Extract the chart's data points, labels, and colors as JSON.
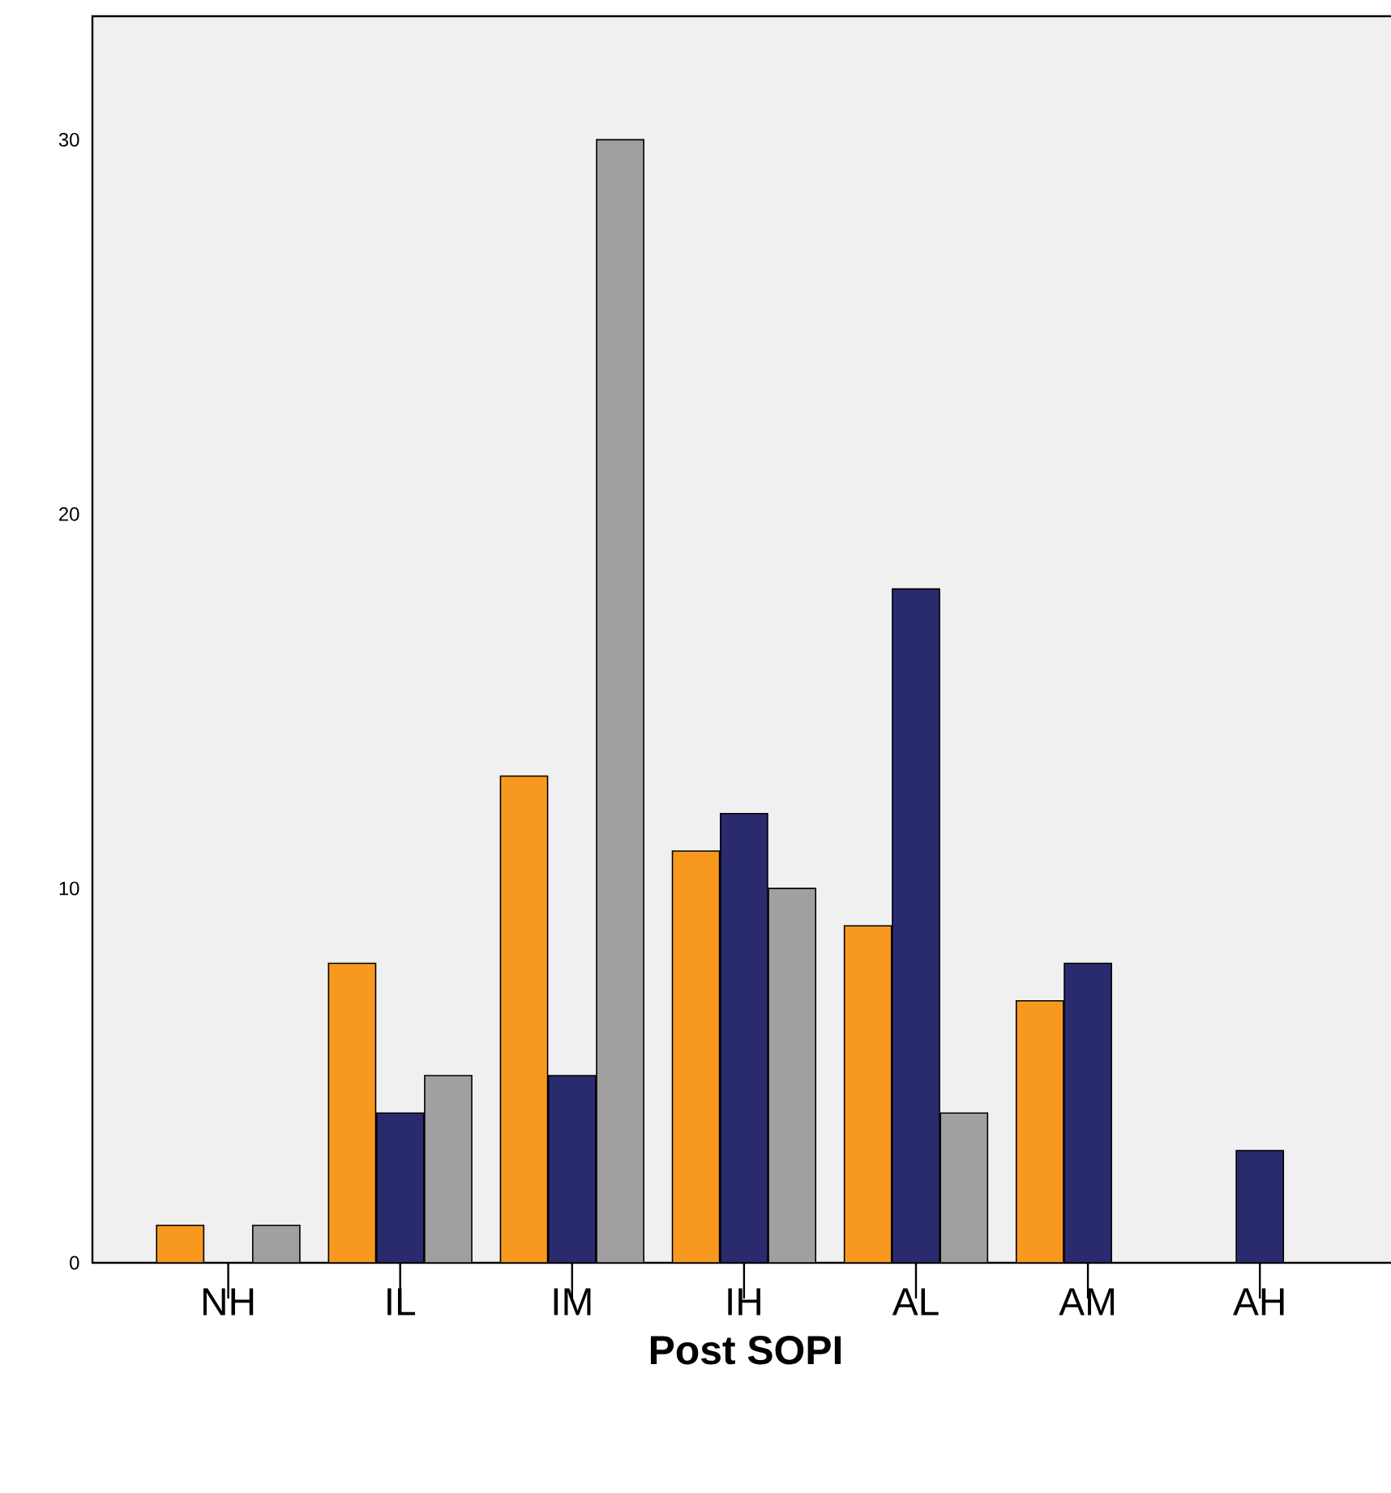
{
  "chart_data": {
    "type": "bar",
    "xlabel": "Post SOPI",
    "categories": [
      "NH",
      "IL",
      "IM",
      "IH",
      "AL",
      "AM",
      "AH"
    ],
    "series": [
      {
        "color": "#f7991f",
        "values": [
          1,
          8,
          13,
          11,
          9,
          7,
          null
        ]
      },
      {
        "color": "#2a2a6e",
        "values": [
          null,
          4,
          5,
          12,
          18,
          8,
          3
        ]
      },
      {
        "color": "#a0a0a0",
        "values": [
          1,
          5,
          30,
          10,
          4,
          null,
          null
        ]
      }
    ],
    "ylim": [
      0,
      33.3
    ],
    "yticks": [
      0,
      10,
      20,
      30
    ],
    "grid": false
  }
}
